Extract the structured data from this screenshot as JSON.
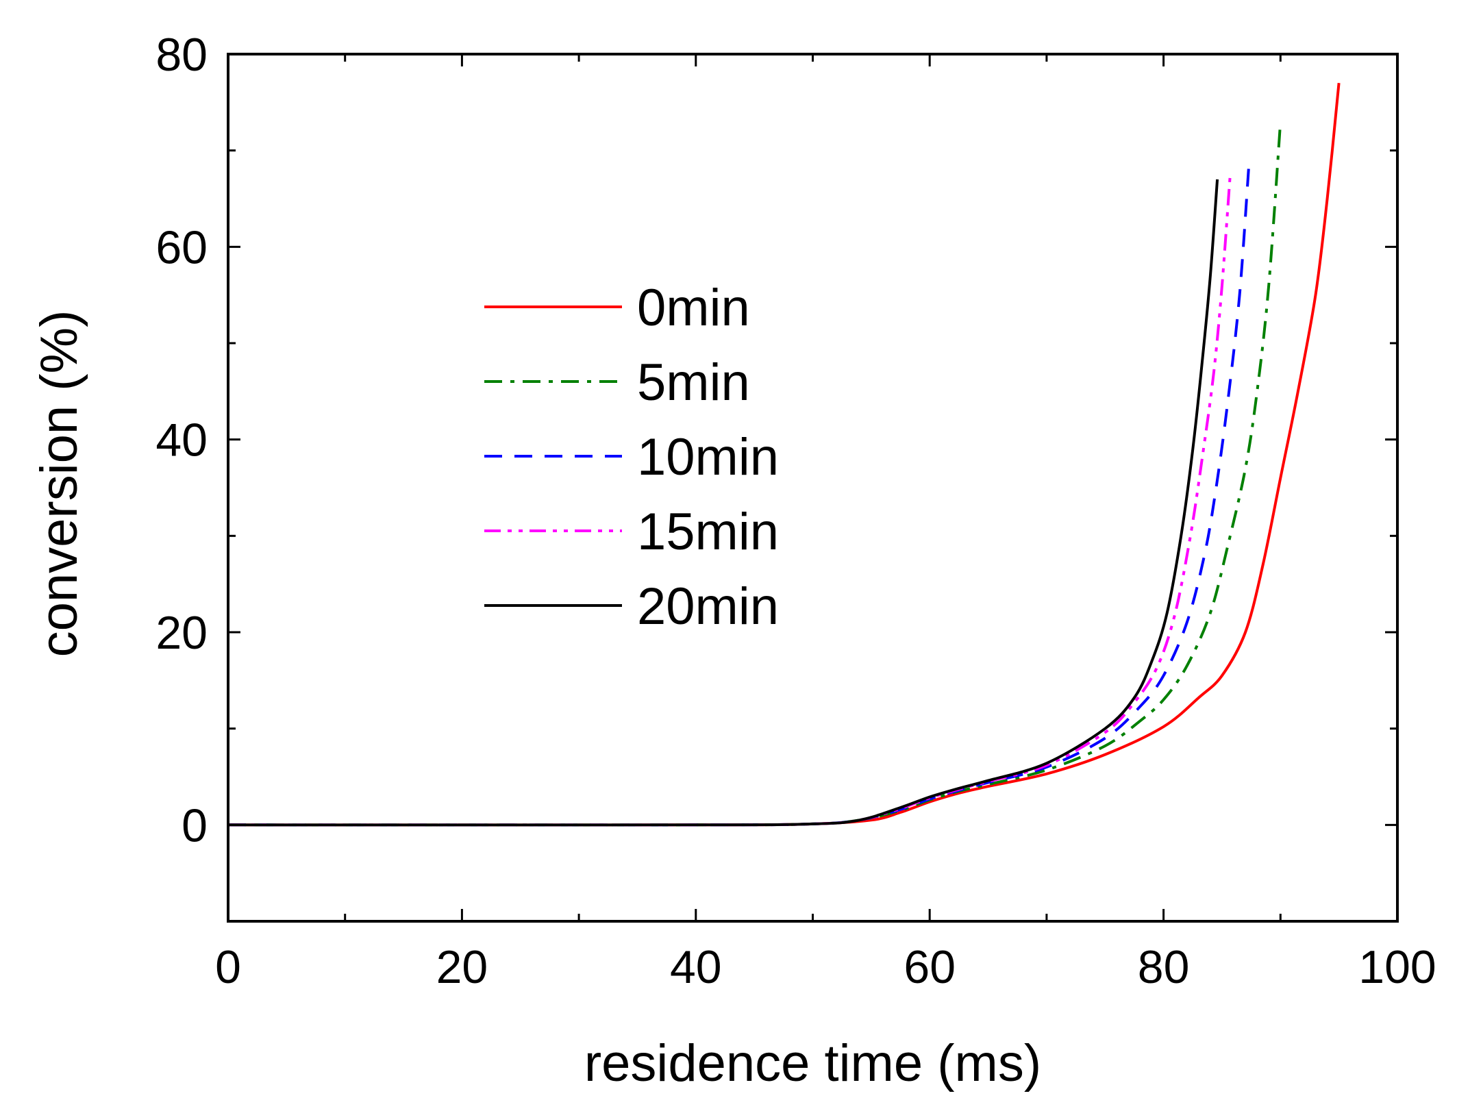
{
  "chart_data": {
    "type": "line",
    "title": "",
    "xlabel": "residence time (ms)",
    "ylabel": "conversion (%)",
    "xlim": [
      0,
      100
    ],
    "ylim": [
      -10,
      80
    ],
    "xticks": [
      0,
      20,
      40,
      60,
      80,
      100
    ],
    "yticks": [
      0,
      20,
      40,
      60,
      80
    ],
    "legend_position": "center-left",
    "grid": false,
    "series": [
      {
        "name": "0min",
        "color": "#ff0000",
        "style": "solid",
        "x": [
          0,
          40,
          50,
          55,
          57.5,
          60,
          62.5,
          65,
          70,
          75,
          80,
          83,
          85,
          87,
          88.5,
          90,
          91.5,
          93,
          94,
          95
        ],
        "y": [
          0,
          0,
          0.1,
          0.5,
          1.3,
          2.4,
          3.3,
          4.0,
          5.3,
          7.3,
          10.2,
          13.2,
          15.5,
          20,
          27,
          36,
          45,
          55,
          65,
          77
        ]
      },
      {
        "name": "5min",
        "color": "#008000",
        "style": "dashdot",
        "x": [
          0,
          40,
          50,
          54,
          57.5,
          60,
          62.5,
          65,
          70,
          75,
          78,
          80,
          82,
          84,
          85.5,
          87,
          88,
          89,
          90
        ],
        "y": [
          0,
          0,
          0.1,
          0.5,
          1.5,
          2.6,
          3.5,
          4.2,
          5.7,
          8.2,
          10.8,
          13,
          16.5,
          22,
          29,
          37,
          45,
          56,
          73
        ]
      },
      {
        "name": "10min",
        "color": "#0000ff",
        "style": "dashed",
        "x": [
          0,
          40,
          50,
          54,
          57.5,
          60,
          62.5,
          65,
          70,
          75,
          78,
          80,
          82,
          83.5,
          84.5,
          85.5,
          86.5,
          87.3
        ],
        "y": [
          0,
          0,
          0.1,
          0.5,
          1.6,
          2.7,
          3.6,
          4.4,
          6.0,
          9.0,
          12.3,
          15.5,
          21,
          28,
          35,
          44,
          55,
          68.5
        ]
      },
      {
        "name": "15min",
        "color": "#ff00ff",
        "style": "dashdotdot",
        "x": [
          0,
          40,
          50,
          54,
          57.5,
          60,
          62.5,
          65,
          70,
          75,
          77.5,
          79.5,
          81,
          82.3,
          83.3,
          84.3,
          85,
          85.7
        ],
        "y": [
          0,
          0,
          0.1,
          0.5,
          1.7,
          2.8,
          3.7,
          4.5,
          6.2,
          9.6,
          12.7,
          16.5,
          22,
          30,
          38,
          47,
          56,
          67.5
        ]
      },
      {
        "name": "20min",
        "color": "#000000",
        "style": "solid",
        "x": [
          0,
          40,
          50,
          54,
          57.5,
          60,
          62.5,
          65,
          70,
          75,
          77.5,
          79,
          80.3,
          81.5,
          82.5,
          83.3,
          84,
          84.6
        ],
        "y": [
          0,
          0,
          0.1,
          0.5,
          1.8,
          2.9,
          3.8,
          4.6,
          6.4,
          10.0,
          13.2,
          17,
          22,
          30,
          39,
          48,
          57,
          67
        ]
      }
    ]
  }
}
